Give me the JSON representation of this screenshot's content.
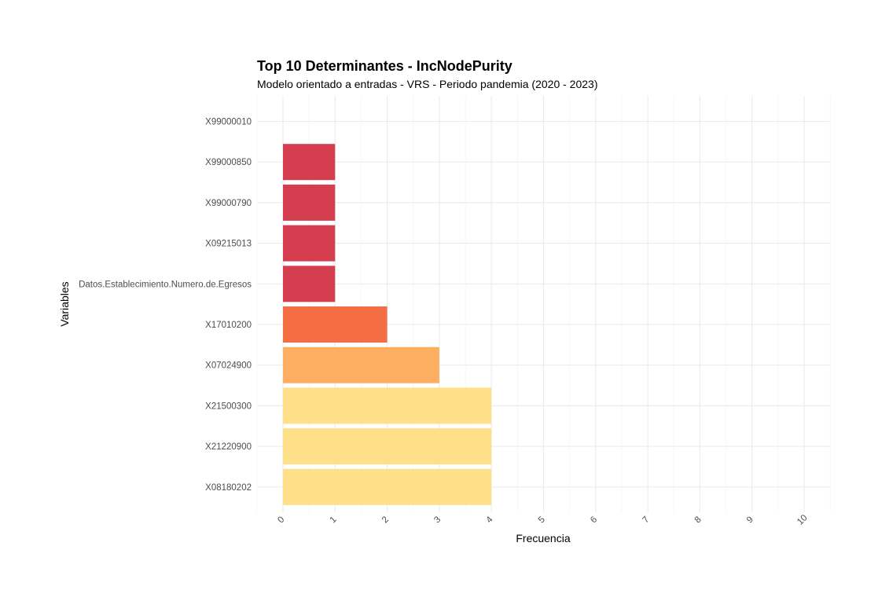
{
  "chart_data": {
    "type": "bar",
    "orientation": "horizontal",
    "title": "Top 10 Determinantes - IncNodePurity",
    "subtitle": "Modelo orientado a entradas - VRS - Periodo pandemia (2020 - 2023)",
    "xlabel": "Frecuencia",
    "ylabel": "Variables",
    "xlim": [
      0,
      10
    ],
    "x_ticks": [
      "0",
      "1",
      "2",
      "3",
      "4",
      "5",
      "6",
      "7",
      "8",
      "9",
      "10"
    ],
    "categories": [
      "X99000010",
      "X99000850",
      "X99000790",
      "X09215013",
      "Datos.Establecimiento.Numero.de.Egresos",
      "X17010200",
      "X07024900",
      "X21500300",
      "X21220900",
      "X08180202"
    ],
    "values": [
      0,
      1,
      1,
      1,
      1,
      2,
      3,
      4,
      4,
      4
    ],
    "colors": [
      "#D53E4F",
      "#D53E4F",
      "#D53E4F",
      "#D53E4F",
      "#D53E4F",
      "#F46D43",
      "#FDAE61",
      "#FEE08B",
      "#FEE08B",
      "#FEE08B"
    ],
    "grid": true,
    "legend": "none"
  }
}
